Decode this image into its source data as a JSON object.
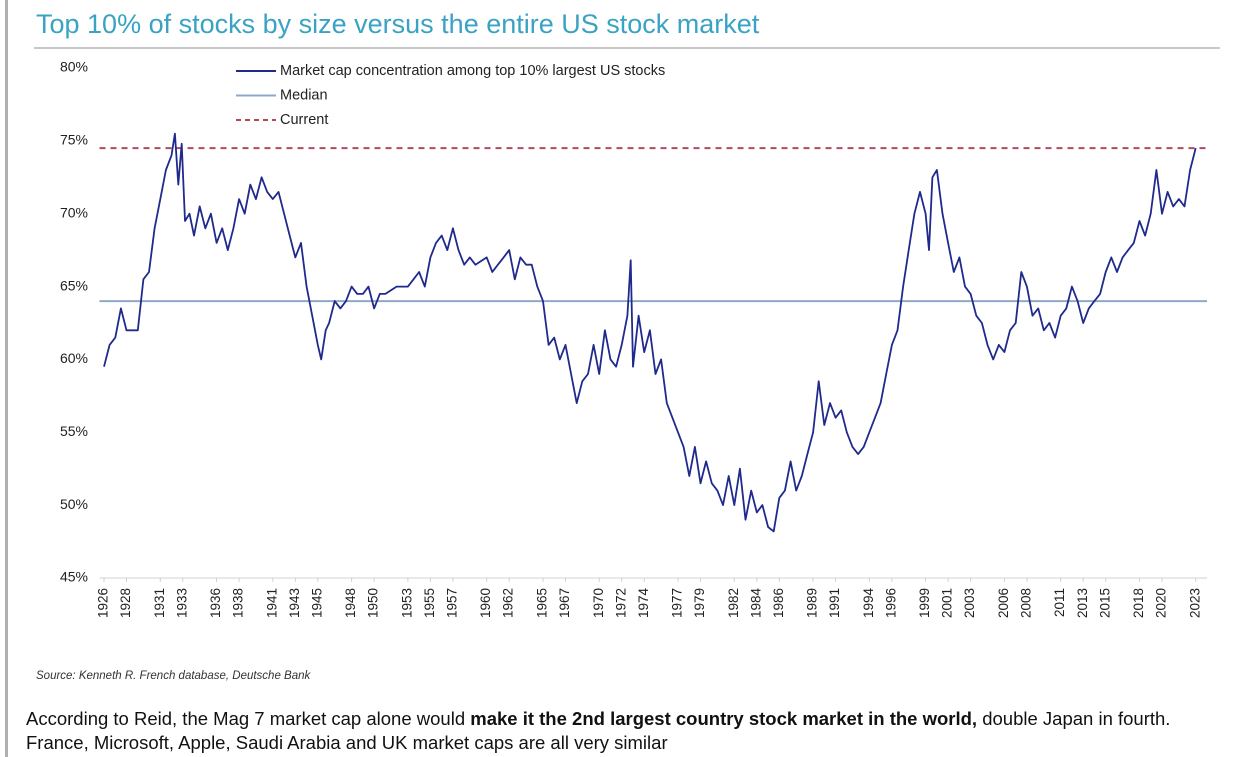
{
  "chart_data": {
    "type": "line",
    "title": "Top 10% of stocks by size versus the entire US stock market",
    "source": "Source: Kenneth R. French database, Deutsche Bank",
    "xlim": [
      1925.6,
      2024
    ],
    "xticks": [
      1926,
      1928,
      1931,
      1933,
      1936,
      1938,
      1941,
      1943,
      1945,
      1948,
      1950,
      1953,
      1955,
      1957,
      1960,
      1962,
      1965,
      1967,
      1970,
      1972,
      1974,
      1977,
      1979,
      1982,
      1984,
      1986,
      1989,
      1991,
      1994,
      1996,
      1999,
      2001,
      2003,
      2006,
      2008,
      2011,
      2013,
      2015,
      2018,
      2020,
      2023
    ],
    "ylim": [
      45,
      80
    ],
    "yticks": [
      {
        "value": 45,
        "label": "45%"
      },
      {
        "value": 50,
        "label": "50%"
      },
      {
        "value": 55,
        "label": "55%"
      },
      {
        "value": 60,
        "label": "60%"
      },
      {
        "value": 65,
        "label": "65%"
      },
      {
        "value": 70,
        "label": "70%"
      },
      {
        "value": 75,
        "label": "75%"
      },
      {
        "value": 80,
        "label": "80%"
      }
    ],
    "legend": "upper left",
    "series": [
      {
        "name": "Market cap concentration among top 10% largest US stocks",
        "color": "#1f2a8c",
        "x": [
          1926,
          1926.5,
          1927,
          1927.5,
          1928,
          1929,
          1929.5,
          1930,
          1930.5,
          1931,
          1931.5,
          1932,
          1932.3,
          1932.6,
          1932.9,
          1933.2,
          1933.6,
          1934,
          1934.5,
          1935,
          1935.5,
          1936,
          1936.5,
          1937,
          1937.5,
          1938,
          1938.5,
          1939,
          1939.5,
          1940,
          1940.5,
          1941,
          1941.5,
          1942,
          1942.5,
          1943,
          1943.5,
          1944,
          1944.5,
          1945,
          1945.3,
          1945.7,
          1946,
          1946.5,
          1947,
          1947.5,
          1948,
          1948.5,
          1949,
          1949.5,
          1950,
          1950.5,
          1951,
          1952,
          1953,
          1953.5,
          1954,
          1954.5,
          1955,
          1955.5,
          1956,
          1956.5,
          1957,
          1957.5,
          1958,
          1958.5,
          1959,
          1960,
          1960.5,
          1961,
          1961.5,
          1962,
          1962.5,
          1963,
          1963.5,
          1964,
          1964.5,
          1965,
          1965.5,
          1966,
          1966.5,
          1967,
          1967.5,
          1968,
          1968.5,
          1969,
          1969.5,
          1970,
          1970.5,
          1971,
          1971.5,
          1972,
          1972.5,
          1972.8,
          1973,
          1973.5,
          1974,
          1974.5,
          1975,
          1975.5,
          1976,
          1976.5,
          1977,
          1977.5,
          1978,
          1978.5,
          1979,
          1979.5,
          1980,
          1980.5,
          1981,
          1981.5,
          1982,
          1982.5,
          1983,
          1983.5,
          1984,
          1984.5,
          1985,
          1985.5,
          1986,
          1986.5,
          1987,
          1987.5,
          1988,
          1988.5,
          1989,
          1989.5,
          1990,
          1990.5,
          1991,
          1991.5,
          1992,
          1992.5,
          1993,
          1993.5,
          1994,
          1994.5,
          1995,
          1995.5,
          1996,
          1996.5,
          1997,
          1997.5,
          1998,
          1998.5,
          1999,
          1999.3,
          1999.6,
          2000,
          2000.5,
          2001,
          2001.5,
          2002,
          2002.5,
          2003,
          2003.5,
          2004,
          2004.5,
          2005,
          2005.5,
          2006,
          2006.5,
          2007,
          2007.5,
          2008,
          2008.5,
          2009,
          2009.5,
          2010,
          2010.5,
          2011,
          2011.5,
          2012,
          2012.5,
          2013,
          2013.5,
          2014,
          2014.5,
          2015,
          2015.5,
          2016,
          2016.5,
          2017,
          2017.5,
          2018,
          2018.5,
          2019,
          2019.5,
          2020,
          2020.5,
          2021,
          2021.5,
          2022,
          2022.5,
          2023
        ],
        "values": [
          59.5,
          61,
          61.5,
          63.5,
          62,
          62,
          65.5,
          66,
          69,
          71,
          73,
          74,
          75.5,
          72,
          74.8,
          69.5,
          70,
          68.5,
          70.5,
          69,
          70,
          68,
          69,
          67.5,
          69,
          71,
          70,
          72,
          71,
          72.5,
          71.5,
          71,
          71.5,
          70,
          68.5,
          67,
          68,
          65,
          63,
          61,
          60,
          62,
          62.5,
          64,
          63.5,
          64,
          65,
          64.5,
          64.5,
          65,
          63.5,
          64.5,
          64.5,
          65,
          65,
          65.5,
          66,
          65,
          67,
          68,
          68.5,
          67.5,
          69,
          67.5,
          66.5,
          67,
          66.5,
          67,
          66,
          66.5,
          67,
          67.5,
          65.5,
          67,
          66.5,
          66.5,
          65,
          64,
          61,
          61.5,
          60,
          61,
          59,
          57,
          58.5,
          59,
          61,
          59,
          62,
          60,
          59.5,
          61,
          63,
          66.8,
          59.5,
          63,
          60.5,
          62,
          59,
          60,
          57,
          56,
          55,
          54,
          52,
          54,
          51.5,
          53,
          51.5,
          51,
          50,
          52,
          50,
          52.5,
          49,
          51,
          49.5,
          50,
          48.5,
          48.2,
          50.5,
          51,
          53,
          51,
          52,
          53.5,
          55,
          58.5,
          55.5,
          57,
          56,
          56.5,
          55,
          54,
          53.5,
          54,
          55,
          56,
          57,
          59,
          61,
          62,
          65,
          67.5,
          70,
          71.5,
          70,
          67.5,
          72.5,
          73,
          70,
          68,
          66,
          67,
          65,
          64.5,
          63,
          62.5,
          61,
          60,
          61,
          60.5,
          62,
          62.5,
          66,
          65,
          63,
          63.5,
          62,
          62.5,
          61.5,
          63,
          63.5,
          65,
          64,
          62.5,
          63.5,
          64,
          64.5,
          66,
          67,
          66,
          67,
          67.5,
          68,
          69.5,
          68.5,
          70,
          73,
          70,
          71.5,
          70.5,
          71,
          70.5,
          73,
          74.5
        ]
      }
    ],
    "reference_lines": [
      {
        "name": "Median",
        "value": 64,
        "color": "#8ea9c8",
        "style": "solid"
      },
      {
        "name": "Current",
        "value": 74.5,
        "color": "#b04a5a",
        "style": "dashed"
      }
    ]
  },
  "caption": {
    "parts": [
      "According to Reid, the Mag 7 market cap alone would ",
      "make it the 2nd largest country stock market in the world,",
      " double Japan in fourth. France, Microsoft, Apple, Saudi Arabia and UK market caps are all very similar"
    ]
  }
}
